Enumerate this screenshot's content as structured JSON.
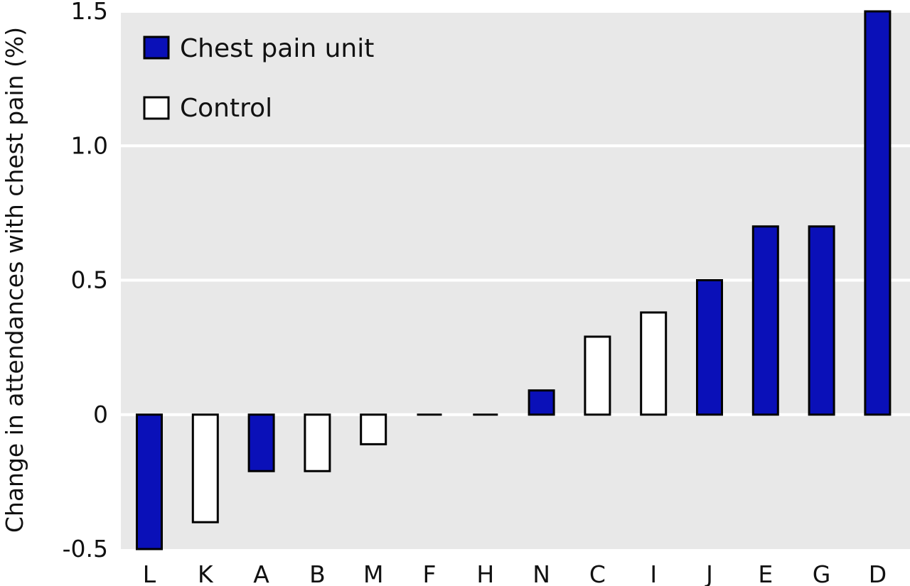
{
  "chart_data": {
    "type": "bar",
    "ylabel": "Change in attendances with chest pain (%)",
    "xlabel": "",
    "ylim": [
      -0.5,
      1.5
    ],
    "yticks": [
      -0.5,
      0,
      0.5,
      1.0,
      1.5
    ],
    "ytick_labels": [
      "-0.5",
      "0",
      "0.5",
      "1.0",
      "1.5"
    ],
    "grid": "horizontal",
    "legend_position": "top-left",
    "colors": {
      "chest_pain_unit": "#0a10b8",
      "control": "#ffffff",
      "plot_background": "#e8e8e8",
      "gridline": "#ffffff",
      "outline": "#000000"
    },
    "legend": [
      {
        "key": "chest_pain_unit",
        "label": "Chest pain unit"
      },
      {
        "key": "control",
        "label": "Control"
      }
    ],
    "categories": [
      "L",
      "K",
      "A",
      "B",
      "M",
      "F",
      "H",
      "N",
      "C",
      "I",
      "J",
      "E",
      "G",
      "D"
    ],
    "values": [
      -0.5,
      -0.4,
      -0.21,
      -0.21,
      -0.11,
      0,
      0,
      0.09,
      0.29,
      0.38,
      0.5,
      0.7,
      0.7,
      1.5
    ],
    "groups": [
      "chest_pain_unit",
      "control",
      "chest_pain_unit",
      "control",
      "control",
      "control",
      "control",
      "chest_pain_unit",
      "control",
      "control",
      "chest_pain_unit",
      "chest_pain_unit",
      "chest_pain_unit",
      "chest_pain_unit"
    ]
  }
}
